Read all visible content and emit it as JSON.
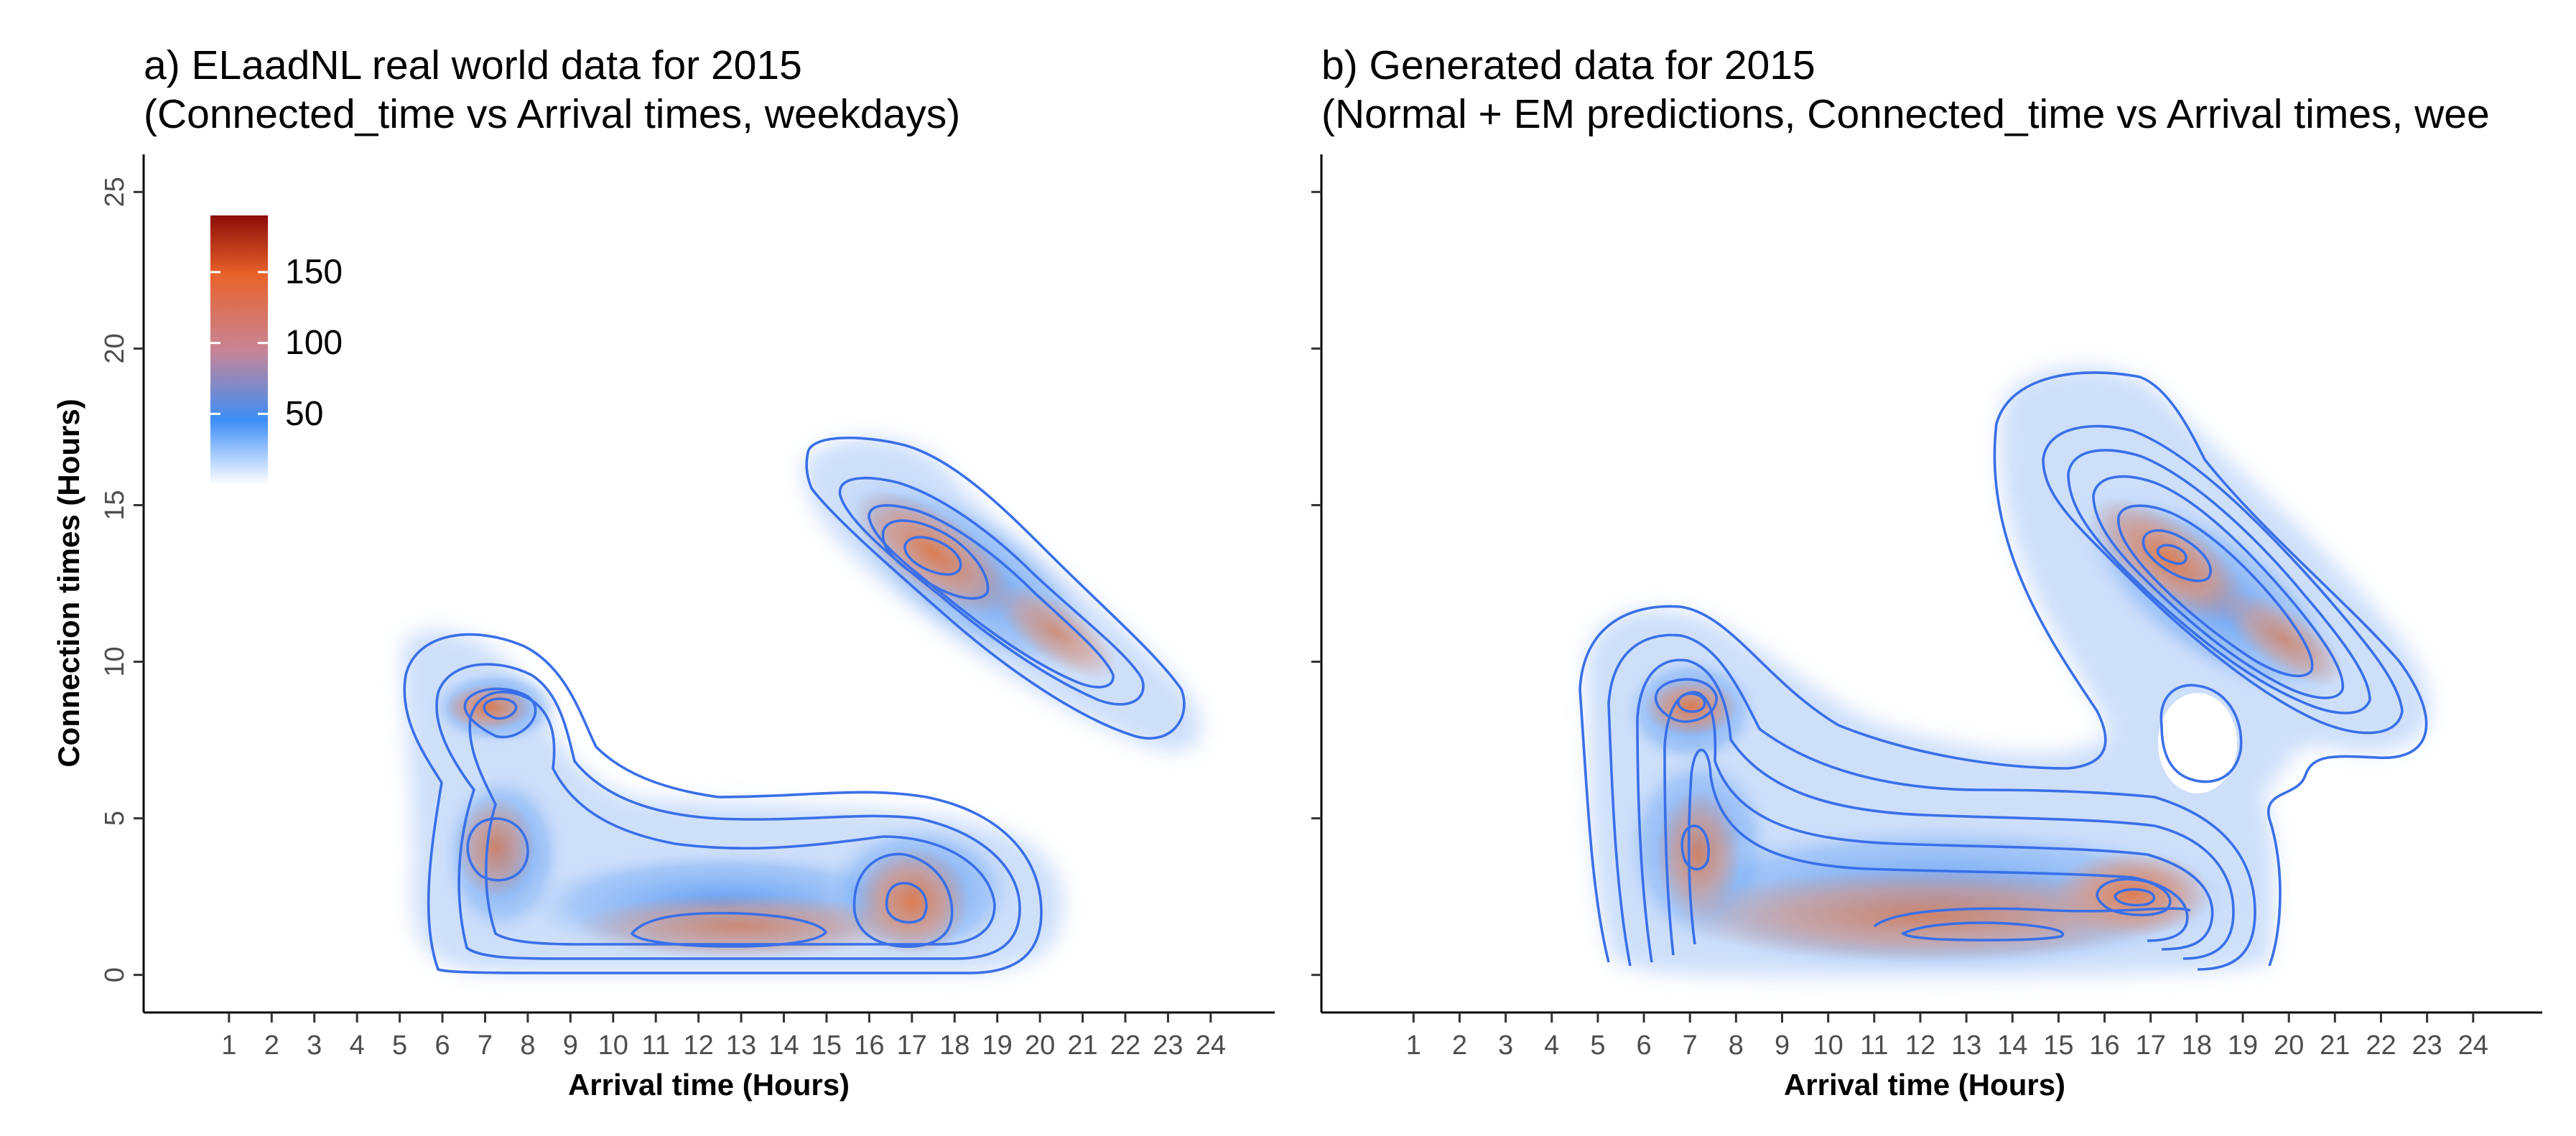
{
  "chart_data": [
    {
      "type": "heatmap",
      "title": "a) ELaadNL real world data for 2015",
      "subtitle": "(Connected_time vs Arrival times, weekdays)",
      "xlabel": "Arrival time (Hours)",
      "ylabel": "Connection times (Hours)",
      "xlim": [
        -1,
        25.5
      ],
      "ylim": [
        -1.2,
        26.2
      ],
      "x_ticks": [
        "1",
        "2",
        "3",
        "4",
        "5",
        "6",
        "7",
        "8",
        "9",
        "10",
        "11",
        "12",
        "13",
        "14",
        "15",
        "16",
        "17",
        "18",
        "19",
        "20",
        "21",
        "22",
        "23",
        "24"
      ],
      "y_ticks": [
        "0",
        "5",
        "10",
        "15",
        "20",
        "25"
      ],
      "colorbar": {
        "ticks": [
          "50",
          "100",
          "150"
        ],
        "range": [
          0,
          190
        ],
        "colors": [
          "#ffffff",
          "#3d8ef8",
          "#c98596",
          "#e8622a",
          "#8b0c07"
        ]
      },
      "contour_color": "#3a6fe8",
      "grid": false,
      "density_peaks": [
        {
          "x": 7.0,
          "y": 8.7,
          "level": "high"
        },
        {
          "x": 7.0,
          "y": 4.0,
          "level": "medium"
        },
        {
          "x": 17.0,
          "y": 2.2,
          "level": "high"
        },
        {
          "x": 12.5,
          "y": 1.5,
          "level": "medium"
        },
        {
          "x": 17.0,
          "y": 13.5,
          "level": "high"
        },
        {
          "x": 20.5,
          "y": 10.0,
          "level": "medium"
        }
      ]
    },
    {
      "type": "heatmap",
      "title": "b) Generated data for 2015",
      "subtitle": "(Normal + EM predictions, Connected_time vs Arrival times, wee",
      "xlabel": "Arrival time (Hours)",
      "ylabel": "",
      "xlim": [
        -1,
        25.5
      ],
      "ylim": [
        -1.2,
        26.2
      ],
      "x_ticks": [
        "1",
        "2",
        "3",
        "4",
        "5",
        "6",
        "7",
        "8",
        "9",
        "10",
        "11",
        "12",
        "13",
        "14",
        "15",
        "16",
        "17",
        "18",
        "19",
        "20",
        "21",
        "22",
        "23",
        "24"
      ],
      "y_ticks": [
        "0",
        "5",
        "10",
        "15",
        "20",
        "25"
      ],
      "contour_color": "#3a6fe8",
      "grid": false,
      "density_peaks": [
        {
          "x": 7.0,
          "y": 8.8,
          "level": "high"
        },
        {
          "x": 7.0,
          "y": 4.2,
          "level": "medium"
        },
        {
          "x": 16.8,
          "y": 2.6,
          "level": "high"
        },
        {
          "x": 13.0,
          "y": 1.7,
          "level": "medium"
        },
        {
          "x": 17.3,
          "y": 13.3,
          "level": "high"
        },
        {
          "x": 20.0,
          "y": 10.2,
          "level": "medium"
        }
      ]
    }
  ]
}
